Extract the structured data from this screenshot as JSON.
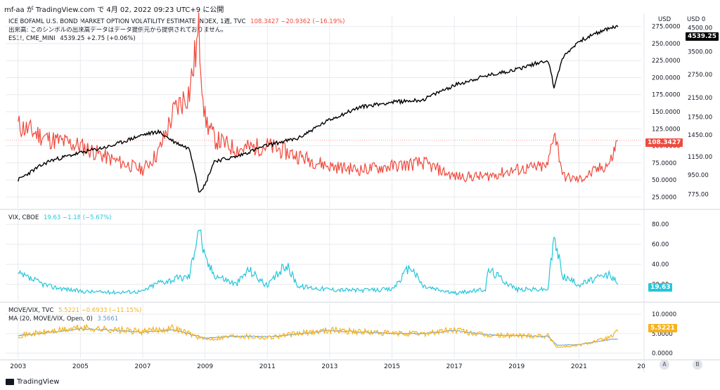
{
  "header": {
    "note": "mf-aa が TradingView.com で 4月 02, 2022 09:23 UTC+9 に公開"
  },
  "footer": {
    "brand": "TradingView"
  },
  "axis_buttons": {
    "a": "A",
    "b": "B"
  },
  "colors": {
    "move": "#f04a3d",
    "es": "#000000",
    "vix": "#26c6da",
    "ratio": "#f6b21e",
    "ma": "#5b9bd5",
    "grid": "#e8eaef"
  },
  "chart_data": [
    {
      "type": "line",
      "pane": "top",
      "legend": [
        {
          "name": "ICE BOFAML U.S. BOND MARKET OPTION VOLATILITY ESTIMATE INDEX, 1週, TVC",
          "value": "108.3427 −20.9362 (−16.19%)"
        },
        {
          "name": "出来高: このシンボルの出来高データはデータ提供元から提供されておりません。",
          "value": ""
        },
        {
          "name": "ES1!, CME_MINI",
          "value": "4539.25 +2.75 (+0.06%)"
        }
      ],
      "left_axis_label": "USD",
      "right_axis_label": "USD 0",
      "left_ticks": [
        "275.0000",
        "250.0000",
        "225.0000",
        "200.0000",
        "175.0000",
        "150.0000",
        "125.0000",
        "100.0000",
        "75.0000",
        "50.0000",
        "25.0000"
      ],
      "right_ticks": [
        "4500.00",
        "3500.00",
        "2750.00",
        "2150.00",
        "1750.00",
        "1450.00",
        "1150.00",
        "950.00",
        "775.00"
      ],
      "x": [
        2003,
        2004,
        2005,
        2006,
        2007,
        2007.5,
        2008,
        2008.5,
        2008.8,
        2009,
        2009.3,
        2010,
        2011,
        2012,
        2013,
        2014,
        2015,
        2016,
        2017,
        2018,
        2019,
        2020,
        2020.2,
        2020.5,
        2021,
        2022,
        2022.25
      ],
      "series": [
        {
          "name": "MOVE",
          "last": "108.3427",
          "values": [
            130,
            110,
            100,
            80,
            65,
            90,
            150,
            180,
            265,
            140,
            110,
            95,
            100,
            85,
            70,
            65,
            70,
            75,
            55,
            55,
            65,
            70,
            125,
            55,
            50,
            75,
            108
          ]
        },
        {
          "name": "ES1!",
          "last": "4539.25",
          "values": [
            900,
            1100,
            1200,
            1290,
            1450,
            1500,
            1350,
            1250,
            800,
            850,
            1100,
            1150,
            1300,
            1400,
            1700,
            1950,
            2050,
            2100,
            2450,
            2700,
            2900,
            3200,
            2400,
            3300,
            3900,
            4500,
            4539
          ]
        }
      ],
      "ylim_left": [
        15,
        285
      ]
    },
    {
      "type": "line",
      "pane": "middle",
      "legend": [
        {
          "name": "VIX, CBOE",
          "value": "19.63 −1.18 (−5.67%)"
        }
      ],
      "ticks": [
        "80.00",
        "60.00",
        "40.00",
        "20.00"
      ],
      "x": [
        2003,
        2004,
        2005,
        2006,
        2007,
        2007.5,
        2008,
        2008.5,
        2008.8,
        2009,
        2009.3,
        2010,
        2010.4,
        2011,
        2011.6,
        2012,
        2013,
        2014,
        2015,
        2015.6,
        2016,
        2017,
        2018,
        2018.1,
        2019,
        2020,
        2020.2,
        2020.5,
        2021,
        2022,
        2022.25
      ],
      "series": [
        {
          "name": "VIX",
          "last": "19.63",
          "values": [
            30,
            18,
            13,
            12,
            13,
            22,
            25,
            28,
            80,
            45,
            30,
            20,
            35,
            18,
            40,
            18,
            15,
            14,
            15,
            38,
            18,
            11,
            15,
            35,
            15,
            15,
            66,
            28,
            20,
            30,
            19.63
          ]
        }
      ],
      "ylim": [
        5,
        85
      ]
    },
    {
      "type": "line",
      "pane": "bottom",
      "legend": [
        {
          "name": "MOVE/VIX, TVC",
          "value": "5.5221 −0.6933 (−11.15%)"
        },
        {
          "name": "MA (20, MOVE/VIX, Open, 0)",
          "value": "3.5661"
        }
      ],
      "ticks": [
        "10.0000",
        "5.0000",
        "0.0000"
      ],
      "x": [
        2003,
        2004,
        2005,
        2006,
        2007,
        2008,
        2009,
        2010,
        2011,
        2012,
        2013,
        2014,
        2015,
        2016,
        2017,
        2018,
        2019,
        2020,
        2020.3,
        2021,
        2022,
        2022.25
      ],
      "series": [
        {
          "name": "MOVE/VIX",
          "last": "5.5221",
          "values": [
            4.5,
            5.5,
            6.5,
            6,
            5.5,
            6.5,
            3.5,
            4.5,
            4,
            5,
            6,
            5.5,
            5,
            5,
            6,
            4.5,
            4.5,
            4.5,
            1.5,
            2,
            4,
            5.5221
          ]
        },
        {
          "name": "MA (20)",
          "last": "3.5661",
          "values": [
            4.5,
            5.3,
            6.2,
            5.9,
            5.4,
            6,
            3.8,
            4.4,
            4.2,
            4.9,
            5.8,
            5.4,
            5,
            5,
            5.8,
            4.7,
            4.5,
            4.3,
            2,
            2.2,
            3.5,
            3.5661
          ]
        }
      ],
      "ylim": [
        -1,
        12
      ]
    }
  ],
  "x_ticks": [
    "2003",
    "2005",
    "2007",
    "2009",
    "2011",
    "2013",
    "2015",
    "2017",
    "2019",
    "2021",
    "20"
  ],
  "x_range": [
    2002.6,
    2023.0
  ]
}
